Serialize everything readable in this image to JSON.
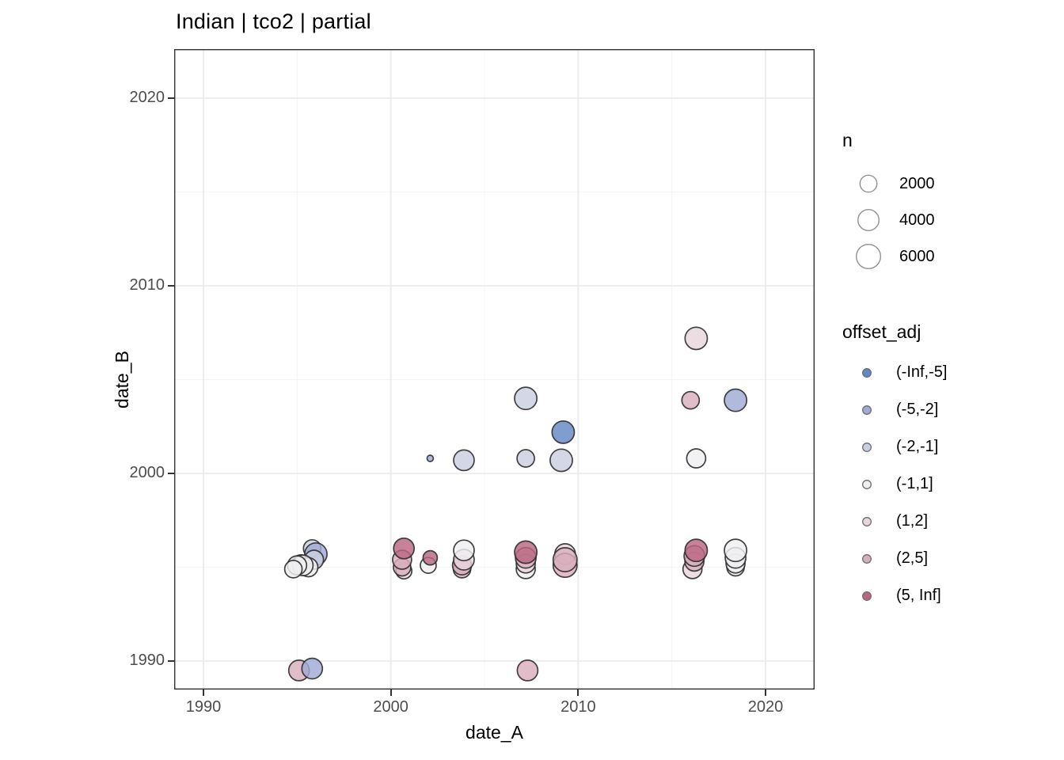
{
  "chart_data": {
    "type": "scatter",
    "title": "Indian | tco2 | partial",
    "xlabel": "date_A",
    "ylabel": "date_B",
    "x_ticks": [
      1990,
      2000,
      2010,
      2020
    ],
    "y_ticks": [
      2020,
      2010,
      2000,
      1990
    ],
    "x_minor": [
      1995,
      2005,
      2015
    ],
    "y_minor": [
      1995,
      2005,
      2015
    ],
    "xlim": [
      1988.4,
      2022.6
    ],
    "ylim": [
      1988.5,
      2022.6
    ],
    "grid": true,
    "legend_position": "right",
    "panel_border_color": "#333333",
    "grid_major_color": "#ebebeb",
    "grid_minor_color": "#f5f5f5",
    "point_stroke_color": "#2e2e2e",
    "size_legend": {
      "title": "n",
      "values": [
        2000,
        4000,
        6000
      ]
    },
    "color_legend": {
      "title": "offset_adj",
      "bins": [
        {
          "label": "(-Inf,-5]",
          "color": "#6487c6"
        },
        {
          "label": "(-5,-2]",
          "color": "#a0aad4"
        },
        {
          "label": "(-2,-1]",
          "color": "#cbd0e0"
        },
        {
          "label": "(-1,1]",
          "color": "#efeef0"
        },
        {
          "label": "(1,2]",
          "color": "#e8d6dd"
        },
        {
          "label": "(2,5]",
          "color": "#d9aebd"
        },
        {
          "label": "(5, Inf]",
          "color": "#b96781"
        }
      ]
    },
    "points": [
      {
        "x": 1995.8,
        "y": 1996.0,
        "n": 2600,
        "bin": "(-2,-1]"
      },
      {
        "x": 1996.0,
        "y": 1995.7,
        "n": 4400,
        "bin": "(-5,-2]"
      },
      {
        "x": 1995.9,
        "y": 1995.4,
        "n": 3100,
        "bin": "(-2,-1]"
      },
      {
        "x": 1995.2,
        "y": 1995.2,
        "n": 2600,
        "bin": "(2,5]"
      },
      {
        "x": 1995.6,
        "y": 1995.0,
        "n": 3100,
        "bin": "(-1,1]"
      },
      {
        "x": 1995.3,
        "y": 1995.1,
        "n": 3700,
        "bin": "(-1,1]"
      },
      {
        "x": 1995.0,
        "y": 1995.1,
        "n": 3100,
        "bin": "(-1,1]"
      },
      {
        "x": 1994.8,
        "y": 1994.9,
        "n": 2600,
        "bin": "(-1,1]"
      },
      {
        "x": 1995.1,
        "y": 1989.5,
        "n": 3700,
        "bin": "(2,5]"
      },
      {
        "x": 1995.8,
        "y": 1989.6,
        "n": 3700,
        "bin": "(-5,-2]"
      },
      {
        "x": 2000.7,
        "y": 1994.8,
        "n": 2100,
        "bin": "(1,2]"
      },
      {
        "x": 2000.6,
        "y": 1995.0,
        "n": 2600,
        "bin": "(2,5]"
      },
      {
        "x": 2000.6,
        "y": 1995.4,
        "n": 3100,
        "bin": "(2,5]"
      },
      {
        "x": 2000.7,
        "y": 1996.0,
        "n": 3700,
        "bin": "(5, Inf]"
      },
      {
        "x": 2002.0,
        "y": 1995.1,
        "n": 2100,
        "bin": "(-1,1]"
      },
      {
        "x": 2002.1,
        "y": 1995.5,
        "n": 1650,
        "bin": "(5, Inf]"
      },
      {
        "x": 2002.1,
        "y": 2000.8,
        "n": 230,
        "bin": "(-5,-2]"
      },
      {
        "x": 2003.9,
        "y": 2000.7,
        "n": 3700,
        "bin": "(-2,-1]"
      },
      {
        "x": 2003.8,
        "y": 1994.9,
        "n": 2600,
        "bin": "(2,5]"
      },
      {
        "x": 2003.8,
        "y": 1995.1,
        "n": 3100,
        "bin": "(2,5]"
      },
      {
        "x": 2003.9,
        "y": 1995.4,
        "n": 3700,
        "bin": "(1,2]"
      },
      {
        "x": 2003.9,
        "y": 1995.9,
        "n": 3700,
        "bin": "(-1,1]"
      },
      {
        "x": 2007.2,
        "y": 2004.0,
        "n": 4400,
        "bin": "(-2,-1]"
      },
      {
        "x": 2007.2,
        "y": 2000.8,
        "n": 2600,
        "bin": "(-2,-1]"
      },
      {
        "x": 2007.2,
        "y": 1994.9,
        "n": 3100,
        "bin": "(-1,1]"
      },
      {
        "x": 2007.2,
        "y": 1995.2,
        "n": 3100,
        "bin": "(1,2]"
      },
      {
        "x": 2007.2,
        "y": 1995.5,
        "n": 3700,
        "bin": "(2,5]"
      },
      {
        "x": 2007.2,
        "y": 1995.8,
        "n": 4400,
        "bin": "(5, Inf]"
      },
      {
        "x": 2007.3,
        "y": 1989.5,
        "n": 3700,
        "bin": "(2,5]"
      },
      {
        "x": 2009.2,
        "y": 2002.2,
        "n": 4400,
        "bin": "(-Inf,-5]"
      },
      {
        "x": 2009.1,
        "y": 2000.7,
        "n": 4400,
        "bin": "(-2,-1]"
      },
      {
        "x": 2009.3,
        "y": 1995.7,
        "n": 3700,
        "bin": "(1,2]"
      },
      {
        "x": 2009.3,
        "y": 1995.1,
        "n": 5100,
        "bin": "(2,5]"
      },
      {
        "x": 2009.3,
        "y": 1995.4,
        "n": 5100,
        "bin": "(2,5]"
      },
      {
        "x": 2016.3,
        "y": 2007.2,
        "n": 4400,
        "bin": "(1,2]"
      },
      {
        "x": 2016.0,
        "y": 2003.9,
        "n": 2600,
        "bin": "(2,5]"
      },
      {
        "x": 2016.3,
        "y": 2000.8,
        "n": 3100,
        "bin": "(-1,1]"
      },
      {
        "x": 2016.1,
        "y": 1994.9,
        "n": 3100,
        "bin": "(1,2]"
      },
      {
        "x": 2016.2,
        "y": 1995.3,
        "n": 3100,
        "bin": "(2,5]"
      },
      {
        "x": 2016.2,
        "y": 1995.6,
        "n": 3700,
        "bin": "(2,5]"
      },
      {
        "x": 2016.3,
        "y": 1995.9,
        "n": 4400,
        "bin": "(5, Inf]"
      },
      {
        "x": 2018.4,
        "y": 2003.9,
        "n": 4400,
        "bin": "(-5,-2]"
      },
      {
        "x": 2018.4,
        "y": 1995.0,
        "n": 2600,
        "bin": "(-1,1]"
      },
      {
        "x": 2018.4,
        "y": 1995.2,
        "n": 3100,
        "bin": "(-1,1]"
      },
      {
        "x": 2018.4,
        "y": 1995.5,
        "n": 3700,
        "bin": "(-1,1]"
      },
      {
        "x": 2018.4,
        "y": 1995.9,
        "n": 4400,
        "bin": "(-1,1]"
      }
    ]
  }
}
